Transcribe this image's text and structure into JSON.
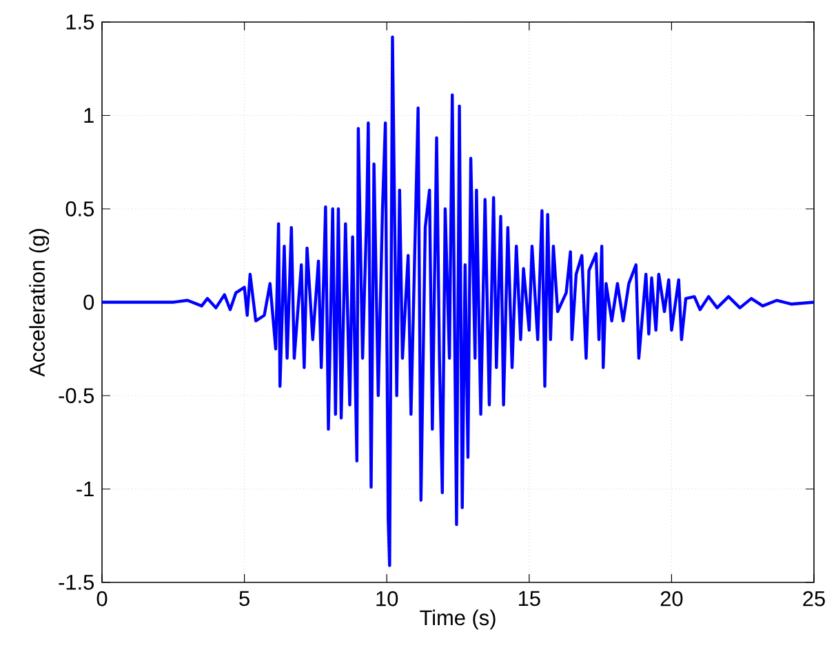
{
  "chart_data": {
    "type": "line",
    "xlabel": "Time (s)",
    "ylabel": "Acceleration (g)",
    "xlim": [
      0,
      25
    ],
    "ylim": [
      -1.5,
      1.5
    ],
    "xticks": [
      0,
      5,
      10,
      15,
      20,
      25
    ],
    "yticks": [
      -1.5,
      -1,
      -0.5,
      0,
      0.5,
      1,
      1.5
    ],
    "grid": true,
    "series": [
      {
        "color": "#0000ff",
        "x": [
          0,
          1,
          2,
          2.5,
          3,
          3.5,
          3.7,
          4,
          4.3,
          4.5,
          4.7,
          5.0,
          5.1,
          5.2,
          5.4,
          5.7,
          5.9,
          6.1,
          6.2,
          6.25,
          6.4,
          6.5,
          6.65,
          6.75,
          7.0,
          7.1,
          7.2,
          7.4,
          7.6,
          7.7,
          7.85,
          7.95,
          8.1,
          8.2,
          8.3,
          8.4,
          8.55,
          8.7,
          8.8,
          8.95,
          9.0,
          9.15,
          9.3,
          9.35,
          9.45,
          9.55,
          9.7,
          9.85,
          9.95,
          10.05,
          10.1,
          10.2,
          10.35,
          10.45,
          10.55,
          10.75,
          10.85,
          11.1,
          11.2,
          11.35,
          11.5,
          11.6,
          11.75,
          11.85,
          11.95,
          12.05,
          12.2,
          12.3,
          12.45,
          12.55,
          12.65,
          12.75,
          12.85,
          12.95,
          13.1,
          13.15,
          13.3,
          13.45,
          13.6,
          13.75,
          13.85,
          14.0,
          14.1,
          14.25,
          14.4,
          14.55,
          14.7,
          14.8,
          15.0,
          15.1,
          15.3,
          15.45,
          15.55,
          15.65,
          15.75,
          15.85,
          16.0,
          16.3,
          16.45,
          16.5,
          16.65,
          16.85,
          17.0,
          17.1,
          17.35,
          17.45,
          17.55,
          17.6,
          17.7,
          17.9,
          18.1,
          18.3,
          18.5,
          18.75,
          18.85,
          19.1,
          19.2,
          19.3,
          19.45,
          19.55,
          19.75,
          19.9,
          20.0,
          20.25,
          20.35,
          20.5,
          20.8,
          21.0,
          21.3,
          21.6,
          22.0,
          22.4,
          22.8,
          23.2,
          23.7,
          24.2,
          25
        ],
        "values": [
          0,
          0,
          0,
          0,
          0.01,
          -0.02,
          0.02,
          -0.03,
          0.04,
          -0.04,
          0.05,
          0.08,
          -0.07,
          0.15,
          -0.1,
          -0.07,
          0.1,
          -0.25,
          0.42,
          -0.45,
          0.3,
          -0.3,
          0.4,
          -0.3,
          0.2,
          -0.35,
          0.29,
          -0.2,
          0.22,
          -0.35,
          0.51,
          -0.68,
          0.5,
          -0.6,
          0.5,
          -0.62,
          0.42,
          -0.55,
          0.35,
          -0.85,
          0.93,
          -0.3,
          0.5,
          0.96,
          -0.99,
          0.74,
          -0.5,
          0.5,
          0.96,
          -1.16,
          -1.41,
          1.42,
          -0.5,
          0.6,
          -0.3,
          0.25,
          -0.6,
          1.04,
          -1.06,
          0.4,
          0.6,
          -0.68,
          0.88,
          -0.3,
          -1.02,
          0.5,
          -0.3,
          1.11,
          -1.19,
          1.05,
          -1.1,
          0.2,
          -0.83,
          0.77,
          -0.3,
          0.6,
          -0.6,
          0.55,
          -0.55,
          0.56,
          -0.35,
          0.46,
          -0.55,
          0.4,
          -0.35,
          0.3,
          -0.2,
          0.18,
          -0.15,
          0.3,
          -0.2,
          0.49,
          -0.45,
          0.47,
          -0.2,
          0.3,
          -0.05,
          0.05,
          0.27,
          -0.2,
          0.15,
          0.25,
          -0.3,
          0.17,
          0.26,
          -0.2,
          0.3,
          -0.35,
          0.1,
          -0.1,
          0.1,
          -0.1,
          0.1,
          0.2,
          -0.3,
          0.15,
          -0.17,
          0.13,
          -0.15,
          0.15,
          -0.05,
          0.12,
          -0.15,
          0.12,
          -0.2,
          0.02,
          0.03,
          -0.04,
          0.03,
          -0.03,
          0.03,
          -0.03,
          0.02,
          -0.02,
          0.01,
          -0.01,
          0
        ]
      }
    ]
  }
}
